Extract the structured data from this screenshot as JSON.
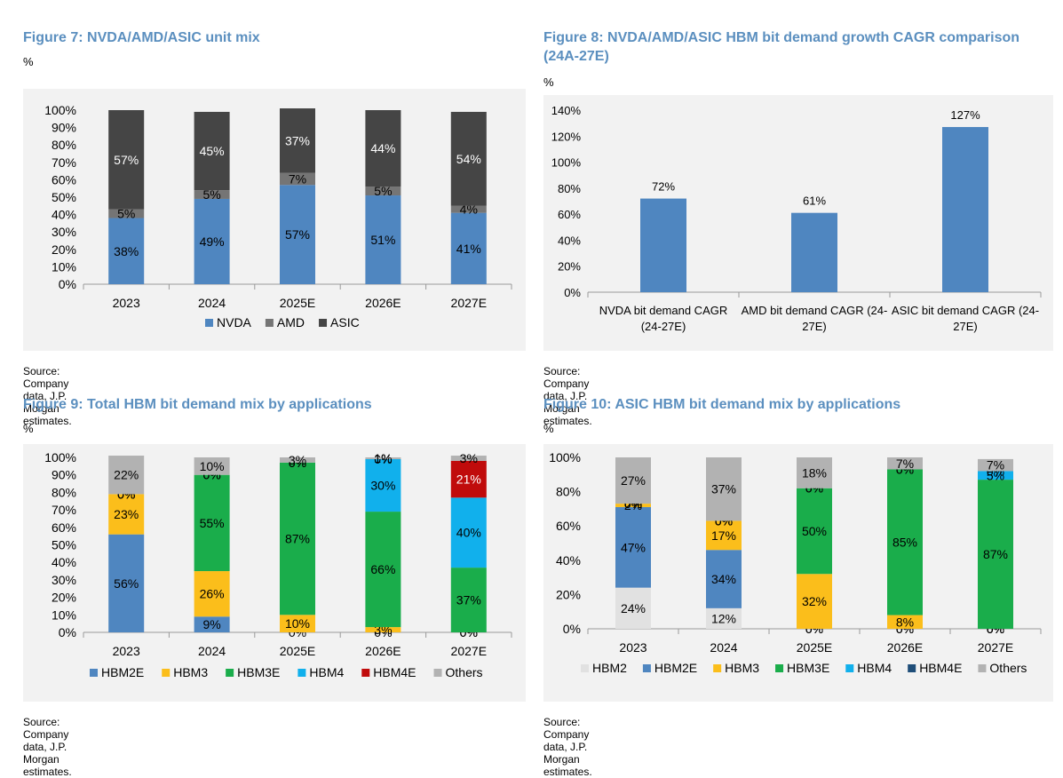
{
  "figures": [
    {
      "title": "Figure 7: NVDA/AMD/ASIC unit mix",
      "unit": "%",
      "source": "Source: Company data, J.P. Morgan estimates."
    },
    {
      "title": "Figure 8: NVDA/AMD/ASIC HBM bit demand growth CAGR comparison (24A-27E)",
      "unit": "%",
      "source": "Source: Company data, J.P. Morgan estimates."
    },
    {
      "title": "Figure 9: Total HBM bit demand mix by applications",
      "unit": "%",
      "source": "Source: Company data, J.P. Morgan estimates."
    },
    {
      "title": "Figure 10: ASIC HBM bit demand mix by applications",
      "unit": "%",
      "source": "Source: Company data, J.P. Morgan estimates."
    }
  ],
  "chart_data": [
    {
      "type": "bar",
      "stacked": true,
      "title": "Figure 7: NVDA/AMD/ASIC unit mix",
      "ylabel": "%",
      "ylim": [
        0,
        100
      ],
      "yticks": [
        "0%",
        "10%",
        "20%",
        "30%",
        "40%",
        "50%",
        "60%",
        "70%",
        "80%",
        "90%",
        "100%"
      ],
      "categories": [
        "2023",
        "2024",
        "2025E",
        "2026E",
        "2027E"
      ],
      "series": [
        {
          "name": "NVDA",
          "color": "#4f86c0",
          "values": [
            38,
            49,
            57,
            51,
            41
          ],
          "labels": [
            "38%",
            "49%",
            "57%",
            "51%",
            "41%"
          ]
        },
        {
          "name": "AMD",
          "color": "#757575",
          "values": [
            5,
            5,
            7,
            5,
            4
          ],
          "labels": [
            "5%",
            "5%",
            "7%",
            "5%",
            "4%"
          ]
        },
        {
          "name": "ASIC",
          "color": "#454545",
          "values": [
            57,
            45,
            37,
            44,
            54
          ],
          "labels": [
            "57%",
            "45%",
            "37%",
            "44%",
            "54%"
          ]
        }
      ],
      "legend": "bottom"
    },
    {
      "type": "bar",
      "title": "Figure 8: NVDA/AMD/ASIC HBM bit demand growth CAGR comparison (24A-27E)",
      "ylabel": "%",
      "ylim": [
        0,
        140
      ],
      "yticks": [
        "0%",
        "20%",
        "40%",
        "60%",
        "80%",
        "100%",
        "120%",
        "140%"
      ],
      "categories": [
        [
          "NVDA bit demand CAGR",
          "(24-27E)"
        ],
        [
          "AMD bit demand CAGR (24-",
          "27E)"
        ],
        [
          "ASIC bit demand CAGR (24-",
          "27E)"
        ]
      ],
      "series": [
        {
          "name": "CAGR",
          "color": "#4f86c0",
          "values": [
            72,
            61,
            127
          ],
          "labels": [
            "72%",
            "61%",
            "127%"
          ]
        }
      ]
    },
    {
      "type": "bar",
      "stacked": true,
      "title": "Figure 9: Total HBM bit demand mix by applications",
      "ylabel": "%",
      "ylim": [
        0,
        100
      ],
      "yticks": [
        "0%",
        "10%",
        "20%",
        "30%",
        "40%",
        "50%",
        "60%",
        "70%",
        "80%",
        "90%",
        "100%"
      ],
      "categories": [
        "2023",
        "2024",
        "2025E",
        "2026E",
        "2027E"
      ],
      "series": [
        {
          "name": "HBM2E",
          "color": "#4f86c0",
          "values": [
            56,
            9,
            0,
            0,
            0
          ],
          "labels": [
            "56%",
            "9%",
            "0%",
            "0%",
            "0%"
          ]
        },
        {
          "name": "HBM3",
          "color": "#fbbe1b",
          "values": [
            23,
            26,
            10,
            3,
            0
          ],
          "labels": [
            "23%",
            "26%",
            "10%",
            "3%",
            "0%"
          ]
        },
        {
          "name": "HBM3E",
          "color": "#1aad4b",
          "values": [
            0,
            55,
            87,
            66,
            37
          ],
          "labels": [
            "0%",
            "55%",
            "87%",
            "66%",
            "37%"
          ]
        },
        {
          "name": "HBM4",
          "color": "#11b0ec",
          "values": [
            0,
            0,
            0,
            30,
            40
          ],
          "labels": [
            "0%",
            "0%",
            "0%",
            "30%",
            "40%"
          ]
        },
        {
          "name": "HBM4E",
          "color": "#c00b0b",
          "values": [
            0,
            0,
            0,
            0,
            21
          ],
          "labels": [
            "0%",
            "0%",
            "0%",
            "0%",
            "21%"
          ]
        },
        {
          "name": "Others",
          "color": "#b2b2b2",
          "values": [
            22,
            10,
            3,
            1,
            3
          ],
          "labels": [
            "22%",
            "10%",
            "3%",
            "1%",
            "3%"
          ]
        }
      ],
      "legend": "bottom"
    },
    {
      "type": "bar",
      "stacked": true,
      "title": "Figure 10: ASIC HBM bit demand mix by applications",
      "ylabel": "%",
      "ylim": [
        0,
        100
      ],
      "yticks": [
        "0%",
        "20%",
        "40%",
        "60%",
        "80%",
        "100%"
      ],
      "categories": [
        "2023",
        "2024",
        "2025E",
        "2026E",
        "2027E"
      ],
      "series": [
        {
          "name": "HBM2",
          "color": "#e1e1e1",
          "values": [
            24,
            12,
            0,
            0,
            0
          ],
          "labels": [
            "24%",
            "12%",
            "0%",
            "0%",
            "0%"
          ]
        },
        {
          "name": "HBM2E",
          "color": "#4f86c0",
          "values": [
            47,
            34,
            0,
            0,
            0
          ],
          "labels": [
            "47%",
            "34%",
            "0%",
            "0%",
            "0%"
          ]
        },
        {
          "name": "HBM3",
          "color": "#fbbe1b",
          "values": [
            2,
            17,
            32,
            8,
            0
          ],
          "labels": [
            "2%",
            "17%",
            "32%",
            "8%",
            "0%"
          ]
        },
        {
          "name": "HBM3E",
          "color": "#1aad4b",
          "values": [
            0,
            0,
            50,
            85,
            87
          ],
          "labels": [
            "0%",
            "0%",
            "50%",
            "85%",
            "87%"
          ]
        },
        {
          "name": "HBM4",
          "color": "#11b0ec",
          "values": [
            0,
            0,
            0,
            0,
            5
          ],
          "labels": [
            "0%",
            "0%",
            "0%",
            "0%",
            "5%"
          ]
        },
        {
          "name": "HBM4E",
          "color": "#1f4e79",
          "values": [
            0,
            0,
            0,
            0,
            0
          ],
          "labels": [
            "0%",
            "0%",
            "0%",
            "0%",
            "0%"
          ]
        },
        {
          "name": "Others",
          "color": "#b2b2b2",
          "values": [
            27,
            37,
            18,
            7,
            7
          ],
          "labels": [
            "27%",
            "37%",
            "18%",
            "7%",
            "7%"
          ]
        }
      ],
      "legend": "bottom"
    }
  ]
}
